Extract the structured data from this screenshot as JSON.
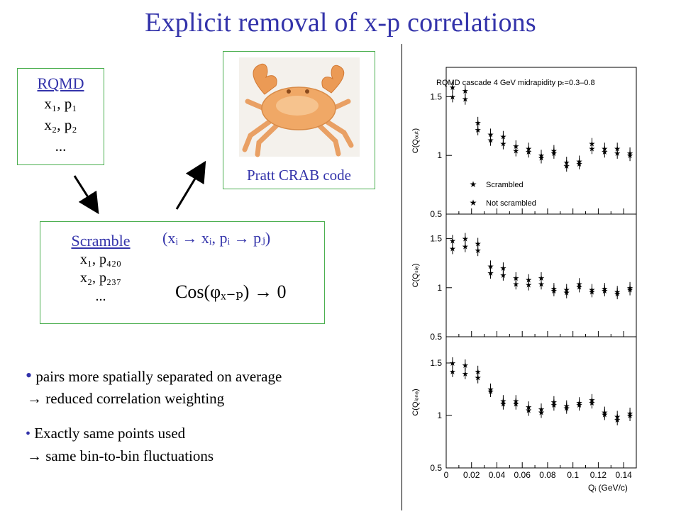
{
  "title": "Explicit removal of x-p correlations",
  "rqmd": {
    "header": "RQMD",
    "line1": "x₁, p₁",
    "line2": "x₂, p₂",
    "line3": "..."
  },
  "crab": {
    "caption": "Pratt CRAB code",
    "icon": "crab-image"
  },
  "scramble": {
    "header": "Scramble",
    "line1": "x₁, p₄₂₀",
    "line2": "x₂, p₂₃₇",
    "line3": "...",
    "permutation": "(xᵢ → xᵢ, pᵢ → pⱼ)",
    "cos_formula": "Cos(φₓ₋ₚ) → 0"
  },
  "bullets": [
    {
      "line1": "pairs more spatially separated on average",
      "line2": "→ reduced correlation weighting"
    },
    {
      "line1": "Exactly same points used",
      "line2": "→ same bin-to-bin fluctuations"
    }
  ],
  "chart_data": {
    "type": "scatter",
    "title": "RQMD cascade 4 GeV midrapidity pₜ=0.3–0.8",
    "xlabel": "Qᵢ (GeV/c)",
    "xlim": [
      0,
      0.15
    ],
    "x_ticks": [
      "0",
      "0.02",
      "0.04",
      "0.06",
      "0.08",
      "0.1",
      "0.12",
      "0.14"
    ],
    "legend": [
      "Scrambled",
      "Not scrambled"
    ],
    "legend_position": "bottom-left of top panel",
    "panels": [
      {
        "ylabel": "C(Qₒᵤₜ)",
        "ylim": [
          0.5,
          1.75
        ],
        "y_ticks": [
          "0.5",
          "1",
          "1.5"
        ],
        "series": [
          {
            "name": "Scrambled",
            "x": [
              0.005,
              0.015,
              0.025,
              0.035,
              0.045,
              0.055,
              0.065,
              0.075,
              0.085,
              0.095,
              0.105,
              0.115,
              0.125,
              0.135,
              0.145
            ],
            "y": [
              1.58,
              1.55,
              1.28,
              1.18,
              1.16,
              1.08,
              1.06,
              1.0,
              1.04,
              0.94,
              0.95,
              1.1,
              1.06,
              1.06,
              1.02
            ]
          },
          {
            "name": "Not scrambled",
            "x": [
              0.005,
              0.015,
              0.025,
              0.035,
              0.045,
              0.055,
              0.065,
              0.075,
              0.085,
              0.095,
              0.105,
              0.115,
              0.125,
              0.135,
              0.145
            ],
            "y": [
              1.5,
              1.48,
              1.22,
              1.13,
              1.1,
              1.04,
              1.03,
              0.98,
              1.02,
              0.91,
              0.93,
              1.06,
              1.03,
              1.02,
              1.0
            ]
          }
        ]
      },
      {
        "ylabel": "C(Qₛᵢₑ)",
        "ylim": [
          0.5,
          1.75
        ],
        "y_ticks": [
          "0.5",
          "1",
          "1.5"
        ],
        "series": [
          {
            "name": "Scrambled",
            "x": [
              0.005,
              0.015,
              0.025,
              0.035,
              0.045,
              0.055,
              0.065,
              0.075,
              0.085,
              0.095,
              0.105,
              0.115,
              0.125,
              0.135,
              0.145
            ],
            "y": [
              1.48,
              1.5,
              1.45,
              1.22,
              1.2,
              1.1,
              1.08,
              1.1,
              0.99,
              0.98,
              1.04,
              0.98,
              0.99,
              0.96,
              1.0
            ]
          },
          {
            "name": "Not scrambled",
            "x": [
              0.005,
              0.015,
              0.025,
              0.035,
              0.045,
              0.055,
              0.065,
              0.075,
              0.085,
              0.095,
              0.105,
              0.115,
              0.125,
              0.135,
              0.145
            ],
            "y": [
              1.4,
              1.42,
              1.38,
              1.15,
              1.13,
              1.04,
              1.03,
              1.04,
              0.97,
              0.95,
              1.01,
              0.96,
              0.97,
              0.94,
              0.98
            ]
          }
        ]
      },
      {
        "ylabel": "C(Qₗₒₙₔ)",
        "ylim": [
          0.5,
          1.75
        ],
        "y_ticks": [
          "0.5",
          "1",
          "1.5"
        ],
        "series": [
          {
            "name": "Scrambled",
            "x": [
              0.005,
              0.015,
              0.025,
              0.035,
              0.045,
              0.055,
              0.065,
              0.075,
              0.085,
              0.095,
              0.105,
              0.115,
              0.125,
              0.135,
              0.145
            ],
            "y": [
              1.5,
              1.48,
              1.42,
              1.25,
              1.14,
              1.14,
              1.08,
              1.06,
              1.13,
              1.09,
              1.12,
              1.15,
              1.03,
              0.99,
              1.02
            ]
          },
          {
            "name": "Not scrambled",
            "x": [
              0.005,
              0.015,
              0.025,
              0.035,
              0.045,
              0.055,
              0.065,
              0.075,
              0.085,
              0.095,
              0.105,
              0.115,
              0.125,
              0.135,
              0.145
            ],
            "y": [
              1.42,
              1.4,
              1.36,
              1.23,
              1.11,
              1.11,
              1.05,
              1.03,
              1.1,
              1.07,
              1.1,
              1.12,
              1.01,
              0.96,
              1.0
            ]
          }
        ]
      }
    ]
  }
}
